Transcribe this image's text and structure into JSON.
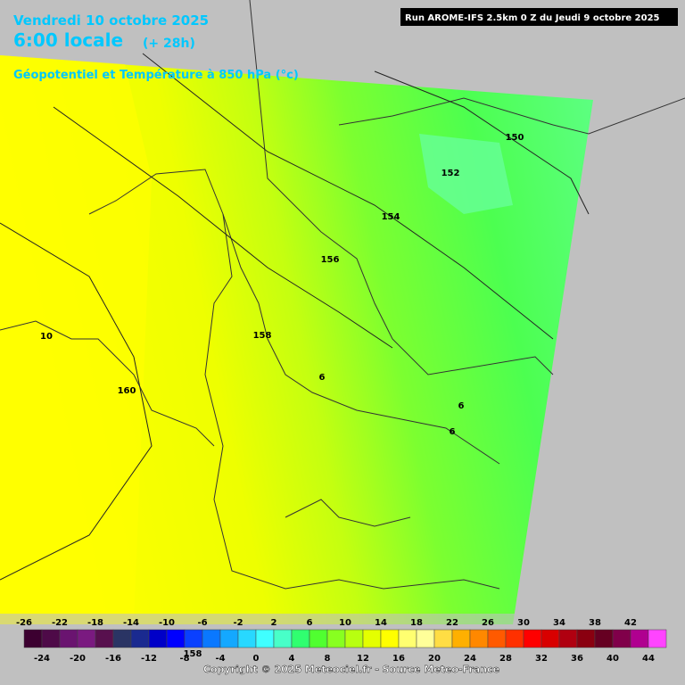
{
  "header": {
    "date": "Vendredi 10 octobre 2025",
    "time": "6:00 locale",
    "lead": "(+ 28h)",
    "field": "Géopotentiel et Température à 850 hPa (°c)",
    "run": "Run AROME-IFS 2.5km 0 Z du Jeudi 9 octobre 2025"
  },
  "contour_labels": [
    "150",
    "152",
    "154",
    "156",
    "158",
    "160",
    "10",
    "6",
    "6",
    "6",
    "158"
  ],
  "legend": {
    "top_labels": [
      "-26",
      "-22",
      "-18",
      "-14",
      "-10",
      "-6",
      "-2",
      "2",
      "6",
      "10",
      "14",
      "18",
      "22",
      "26",
      "30",
      "34",
      "38",
      "42"
    ],
    "bottom_labels": [
      "-24",
      "-20",
      "-16",
      "-12",
      "-8",
      "-4",
      "0",
      "4",
      "8",
      "12",
      "16",
      "20",
      "24",
      "28",
      "32",
      "36",
      "40",
      "44"
    ],
    "colors": [
      "#3c0030",
      "#4e0a48",
      "#6a1470",
      "#7a1a80",
      "#58104e",
      "#2a3464",
      "#1a2a90",
      "#0000c8",
      "#0000ff",
      "#0a40ff",
      "#0a78ff",
      "#14a8ff",
      "#28d8ff",
      "#40ffff",
      "#48ffc8",
      "#30ff70",
      "#50ff30",
      "#88ff20",
      "#b8ff10",
      "#e4ff00",
      "#ffff00",
      "#ffff70",
      "#ffff99",
      "#ffdd44",
      "#ffb000",
      "#ff8800",
      "#ff5a00",
      "#ff3000",
      "#ff0000",
      "#d80000",
      "#b00010",
      "#8a0010",
      "#660022",
      "#80004a",
      "#b00090",
      "#ff44ff"
    ]
  },
  "footer": {
    "copyright": "Copyright © 2025 Meteociel.fr - Source Meteo-France"
  }
}
